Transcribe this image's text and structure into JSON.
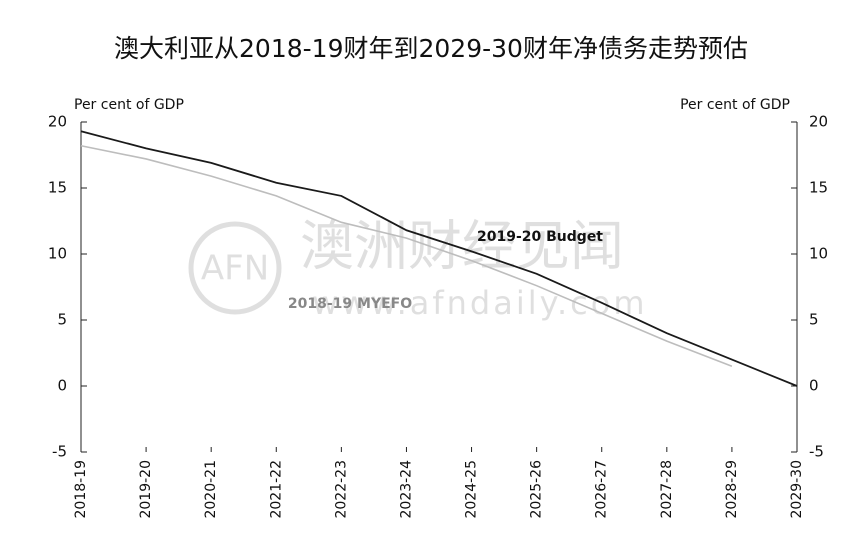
{
  "chart_data": {
    "type": "line",
    "title": "澳大利亚从2018-19财年到2029-30财年净债务走势预估",
    "y_label": "Per cent of GDP",
    "y2_label": "Per cent of GDP",
    "categories": [
      "2018-19",
      "2019-20",
      "2020-21",
      "2021-22",
      "2022-23",
      "2023-24",
      "2024-25",
      "2025-26",
      "2026-27",
      "2027-28",
      "2028-29",
      "2029-30"
    ],
    "series": [
      {
        "name": "2019-20 Budget",
        "color": "#1a1a1a",
        "values": [
          19.3,
          18.0,
          16.9,
          15.4,
          14.4,
          11.8,
          10.2,
          8.5,
          6.3,
          4.0,
          2.0,
          0.0
        ]
      },
      {
        "name": "2018-19 MYEFO",
        "color": "#bdbdbd",
        "values": [
          18.2,
          17.2,
          15.9,
          14.4,
          12.4,
          11.2,
          9.5,
          7.6,
          5.5,
          3.4,
          1.5,
          null
        ]
      }
    ],
    "ylim": [
      -5,
      20
    ],
    "yticks": [
      -5,
      0,
      5,
      10,
      15,
      20
    ],
    "y2lim": [
      -5,
      20
    ],
    "y2ticks": [
      -5,
      0,
      5,
      10,
      15,
      20
    ]
  },
  "watermark": {
    "logo": "AFN",
    "name": "澳洲财经见闻",
    "url": "www.afndaily.com"
  }
}
